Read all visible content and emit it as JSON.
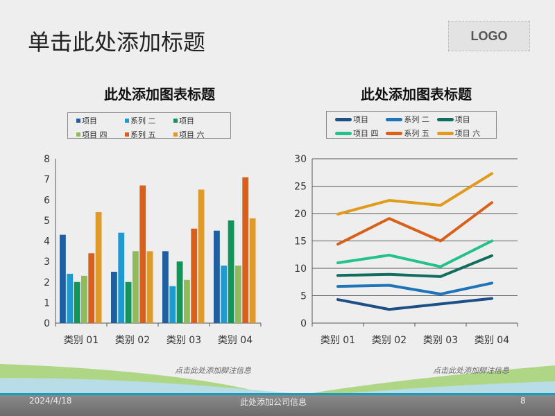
{
  "slide": {
    "title": "单击此处添加标题",
    "logo": "LOGO"
  },
  "footer": {
    "date": "2024/4/18",
    "company": "此处添加公司信息",
    "page": "8",
    "footnote_left": "点击此处添加脚注信息",
    "footnote_right": "点击此处添加脚注信息"
  },
  "chart_data": [
    {
      "type": "bar",
      "title": "此处添加图表标题",
      "categories": [
        "类别 01",
        "类别 02",
        "类别 03",
        "类别 04"
      ],
      "ylim": [
        0,
        8
      ],
      "yticks": [
        "0",
        "1",
        "2",
        "3",
        "4",
        "5",
        "6",
        "7",
        "8"
      ],
      "legend": "top",
      "series": [
        {
          "name": "项目",
          "color": "#1f5fa0",
          "values": [
            4.3,
            2.5,
            3.5,
            4.5
          ]
        },
        {
          "name": "系列 二",
          "color": "#1e9ad0",
          "values": [
            2.4,
            4.4,
            1.8,
            2.8
          ]
        },
        {
          "name": "项目",
          "color": "#13955a",
          "values": [
            2.0,
            2.0,
            3.0,
            5.0
          ]
        },
        {
          "name": "项目 四",
          "color": "#8fbb5a",
          "values": [
            2.3,
            3.5,
            2.1,
            2.8
          ]
        },
        {
          "name": "系列 五",
          "color": "#d9601a",
          "values": [
            3.4,
            6.7,
            4.6,
            7.1
          ]
        },
        {
          "name": "项目 六",
          "color": "#e09a2a",
          "values": [
            5.4,
            3.5,
            6.5,
            5.1
          ]
        }
      ]
    },
    {
      "type": "line",
      "title": "此处添加图表标题",
      "categories": [
        "类别 01",
        "类别 02",
        "类别 03",
        "类别 04"
      ],
      "ylim": [
        0,
        30
      ],
      "yticks": [
        "0",
        "5",
        "10",
        "15",
        "20",
        "25",
        "30"
      ],
      "legend": "top",
      "series": [
        {
          "name": "项目",
          "color": "#1b4f86",
          "values": [
            4.3,
            2.5,
            3.5,
            4.5
          ]
        },
        {
          "name": "系列 二",
          "color": "#1d74b8",
          "values": [
            6.7,
            6.9,
            5.3,
            7.3
          ]
        },
        {
          "name": "项目",
          "color": "#116e5e",
          "values": [
            8.7,
            8.9,
            8.5,
            12.3
          ]
        },
        {
          "name": "项目 四",
          "color": "#22c28a",
          "values": [
            11.0,
            12.4,
            10.3,
            15.0
          ]
        },
        {
          "name": "系列 五",
          "color": "#d9601a",
          "values": [
            14.4,
            19.1,
            15.0,
            22.0
          ]
        },
        {
          "name": "项目 六",
          "color": "#e09a1c",
          "values": [
            19.9,
            22.4,
            21.5,
            27.3
          ]
        }
      ]
    }
  ]
}
